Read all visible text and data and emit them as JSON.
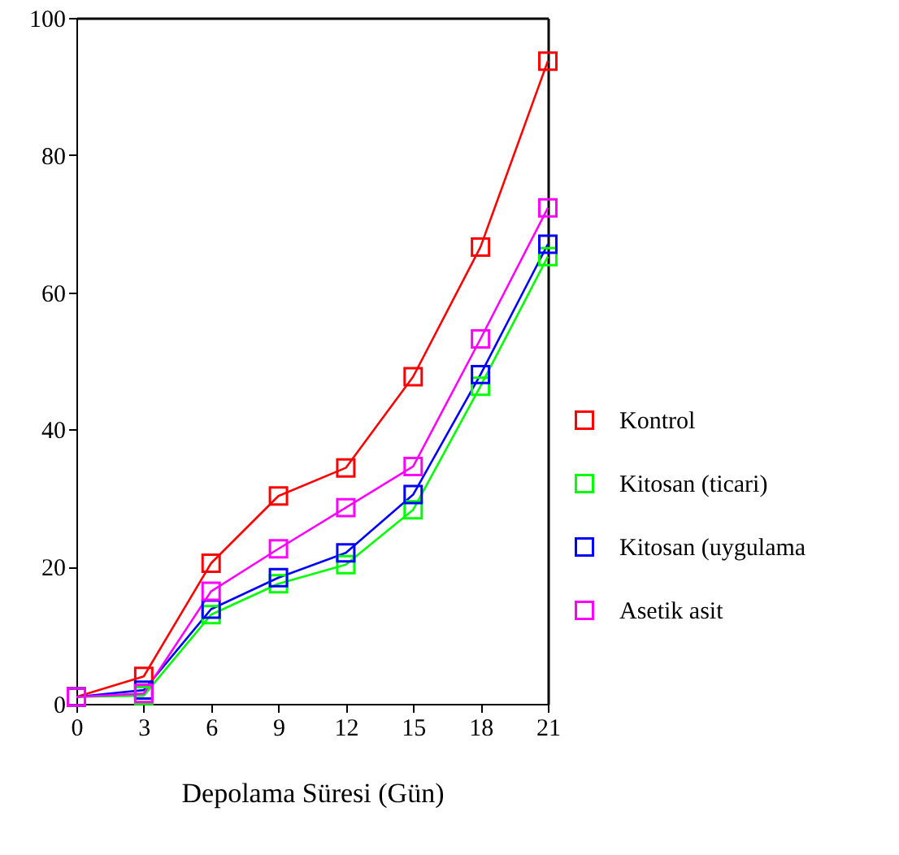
{
  "chart_data": {
    "type": "line",
    "xlabel": "Depolama Süresi (Gün)",
    "x": [
      0,
      3,
      6,
      9,
      12,
      15,
      18,
      21
    ],
    "xlim": [
      0,
      21
    ],
    "xticks": [
      0,
      3,
      6,
      9,
      12,
      15,
      18,
      21
    ],
    "ylim": [
      0,
      100
    ],
    "yticks": [
      0,
      20,
      40,
      60,
      80,
      100
    ],
    "marker": "square",
    "legend": "right",
    "grid": false,
    "series": [
      {
        "name": "Kontrol",
        "color": "#ff0000",
        "values": [
          1,
          4,
          20.5,
          30.3,
          34.4,
          47.7,
          66.6,
          93.7
        ]
      },
      {
        "name": "Kitosan (ticari)",
        "color": "#00ff00",
        "values": [
          1,
          1.2,
          13,
          17.5,
          20.3,
          28.3,
          46.3,
          65.2
        ]
      },
      {
        "name": "Kitosan (uygulama",
        "color": "#0000ff",
        "values": [
          1,
          2,
          13.8,
          18.4,
          22,
          30.5,
          48,
          67
        ]
      },
      {
        "name": "Asetik asit",
        "color": "#ff00ff",
        "values": [
          1,
          1.5,
          16.4,
          22.6,
          28.6,
          34.6,
          53.2,
          72.3
        ]
      }
    ]
  }
}
